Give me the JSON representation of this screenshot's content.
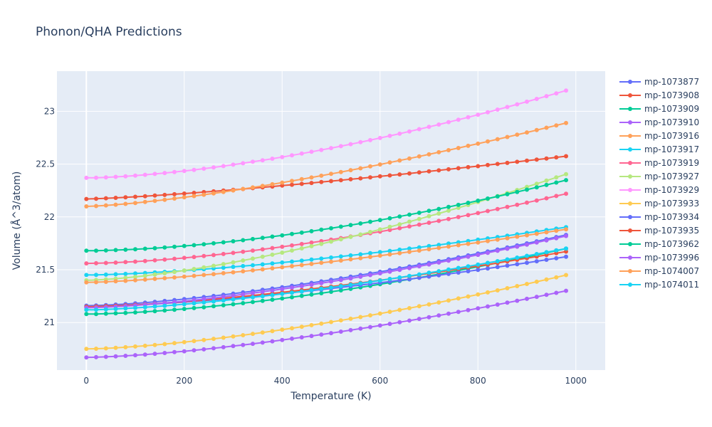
{
  "chart_data": {
    "type": "line",
    "title": "Phonon/QHA Predictions",
    "xlabel": "Temperature (K)",
    "ylabel": "Volume (Å^3/atom)",
    "xlim": [
      -60,
      1060
    ],
    "ylim": [
      20.55,
      23.38
    ],
    "x_ticks": [
      "0",
      "200",
      "400",
      "600",
      "800",
      "1000"
    ],
    "y_ticks": [
      "21",
      "21.5",
      "22",
      "22.5",
      "23"
    ],
    "x_tick_values": [
      0,
      200,
      400,
      600,
      800,
      1000
    ],
    "y_tick_values": [
      21,
      21.5,
      22,
      22.5,
      23
    ],
    "grid": true,
    "legend_position": "right",
    "x_start": 0,
    "x_step": 20,
    "x_end": 990,
    "series": [
      {
        "name": "mp-1073877",
        "color": "#636efa",
        "markers": true,
        "v0": 21.16,
        "v_end": 21.84,
        "shape": 1.5
      },
      {
        "name": "mp-1073908",
        "color": "#ef553b",
        "markers": true,
        "v0": 22.17,
        "v_end": 22.58,
        "shape": 1.3
      },
      {
        "name": "mp-1073909",
        "color": "#00cc96",
        "markers": true,
        "v0": 21.08,
        "v_end": 21.71,
        "shape": 1.6
      },
      {
        "name": "mp-1073910",
        "color": "#ab63fa",
        "markers": true,
        "v0": 20.67,
        "v_end": 21.31,
        "shape": 1.5
      },
      {
        "name": "mp-1073916",
        "color": "#ffa15a",
        "markers": true,
        "v0": 22.1,
        "v_end": 22.9,
        "shape": 1.4
      },
      {
        "name": "mp-1073917",
        "color": "#19d3f3",
        "markers": true,
        "v0": 21.45,
        "v_end": 21.91,
        "shape": 1.5
      },
      {
        "name": "mp-1073919",
        "color": "#ff6692",
        "markers": true,
        "v0": 21.56,
        "v_end": 22.23,
        "shape": 1.6
      },
      {
        "name": "mp-1073927",
        "color": "#b6e880",
        "markers": true,
        "v0": 21.4,
        "v_end": 22.42,
        "shape": 1.5
      },
      {
        "name": "mp-1073929",
        "color": "#ff97ff",
        "markers": true,
        "v0": 22.37,
        "v_end": 23.21,
        "shape": 1.6
      },
      {
        "name": "mp-1073933",
        "color": "#fecb52",
        "markers": true,
        "v0": 20.75,
        "v_end": 21.46,
        "shape": 1.5
      },
      {
        "name": "mp-1073934",
        "color": "#636efa",
        "markers": true,
        "v0": 21.15,
        "v_end": 21.63,
        "shape": 1.5
      },
      {
        "name": "mp-1073935",
        "color": "#ef553b",
        "markers": true,
        "v0": 21.15,
        "v_end": 21.68,
        "shape": 1.5
      },
      {
        "name": "mp-1073962",
        "color": "#00cc96",
        "markers": true,
        "v0": 21.68,
        "v_end": 22.36,
        "shape": 1.7
      },
      {
        "name": "mp-1073996",
        "color": "#ab63fa",
        "markers": true,
        "v0": 21.14,
        "v_end": 21.83,
        "shape": 1.5
      },
      {
        "name": "mp-1074007",
        "color": "#ffa15a",
        "markers": true,
        "v0": 21.38,
        "v_end": 21.89,
        "shape": 1.4
      },
      {
        "name": "mp-1074011",
        "color": "#19d3f3",
        "markers": true,
        "v0": 21.12,
        "v_end": 21.71,
        "shape": 1.5
      }
    ]
  }
}
